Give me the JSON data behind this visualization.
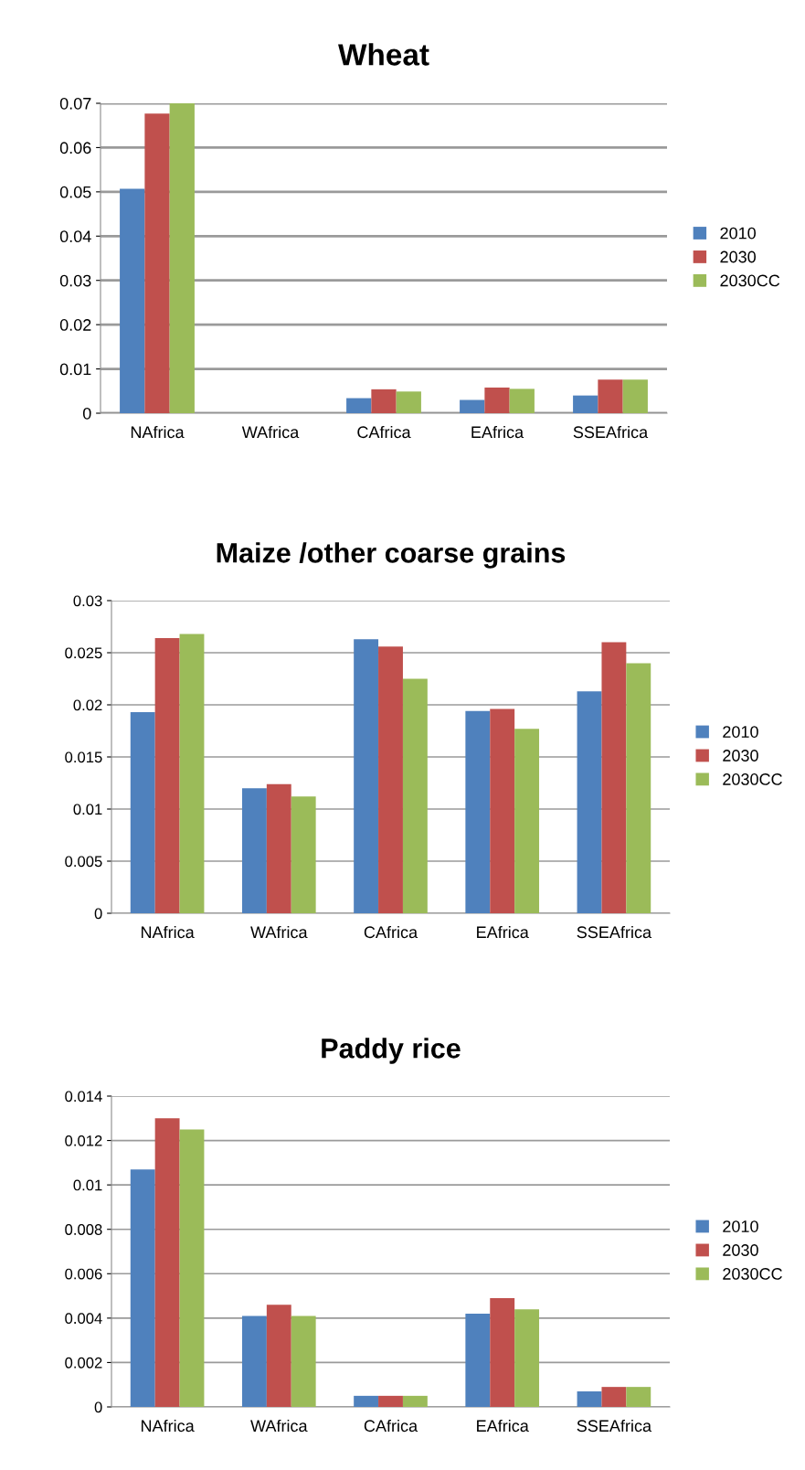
{
  "chart_data": [
    {
      "type": "bar",
      "title": "Wheat",
      "categories": [
        "NAfrica",
        "WAfrica",
        "CAfrica",
        "EAfrica",
        "SSEAfrica"
      ],
      "series": [
        {
          "name": "2010",
          "color": "#4f81bd",
          "values": [
            0.0507,
            0,
            0.0034,
            0.003,
            0.004
          ]
        },
        {
          "name": "2030",
          "color": "#c0504d",
          "values": [
            0.0677,
            0,
            0.0054,
            0.0058,
            0.0076
          ]
        },
        {
          "name": "2030CC",
          "color": "#9bbb59",
          "values": [
            0.07,
            0,
            0.0049,
            0.0055,
            0.0076
          ]
        }
      ],
      "ylim": [
        0,
        0.07
      ],
      "yticks": [
        0,
        0.01,
        0.02,
        0.03,
        0.04,
        0.05,
        0.06,
        0.07
      ],
      "grid": "y",
      "legend": "right"
    },
    {
      "type": "bar",
      "title": "Maize /other coarse grains",
      "categories": [
        "NAfrica",
        "WAfrica",
        "CAfrica",
        "EAfrica",
        "SSEAfrica"
      ],
      "series": [
        {
          "name": "2010",
          "color": "#4f81bd",
          "values": [
            0.0193,
            0.012,
            0.0263,
            0.0194,
            0.0213
          ]
        },
        {
          "name": "2030",
          "color": "#c0504d",
          "values": [
            0.0264,
            0.0124,
            0.0256,
            0.0196,
            0.026
          ]
        },
        {
          "name": "2030CC",
          "color": "#9bbb59",
          "values": [
            0.0268,
            0.0112,
            0.0225,
            0.0177,
            0.024
          ]
        }
      ],
      "ylim": [
        0,
        0.03
      ],
      "yticks": [
        0,
        0.005,
        0.01,
        0.015,
        0.02,
        0.025,
        0.03
      ],
      "grid": "y",
      "legend": "right"
    },
    {
      "type": "bar",
      "title": "Paddy rice",
      "categories": [
        "NAfrica",
        "WAfrica",
        "CAfrica",
        "EAfrica",
        "SSEAfrica"
      ],
      "series": [
        {
          "name": "2010",
          "color": "#4f81bd",
          "values": [
            0.0107,
            0.0041,
            0.0005,
            0.0042,
            0.0007
          ]
        },
        {
          "name": "2030",
          "color": "#c0504d",
          "values": [
            0.013,
            0.0046,
            0.0005,
            0.0049,
            0.0009
          ]
        },
        {
          "name": "2030CC",
          "color": "#9bbb59",
          "values": [
            0.0125,
            0.0041,
            0.0005,
            0.0044,
            0.0009
          ]
        }
      ],
      "ylim": [
        0,
        0.014
      ],
      "yticks": [
        0,
        0.002,
        0.004,
        0.006,
        0.008,
        0.01,
        0.012,
        0.014
      ],
      "grid": "y",
      "legend": "right"
    }
  ]
}
